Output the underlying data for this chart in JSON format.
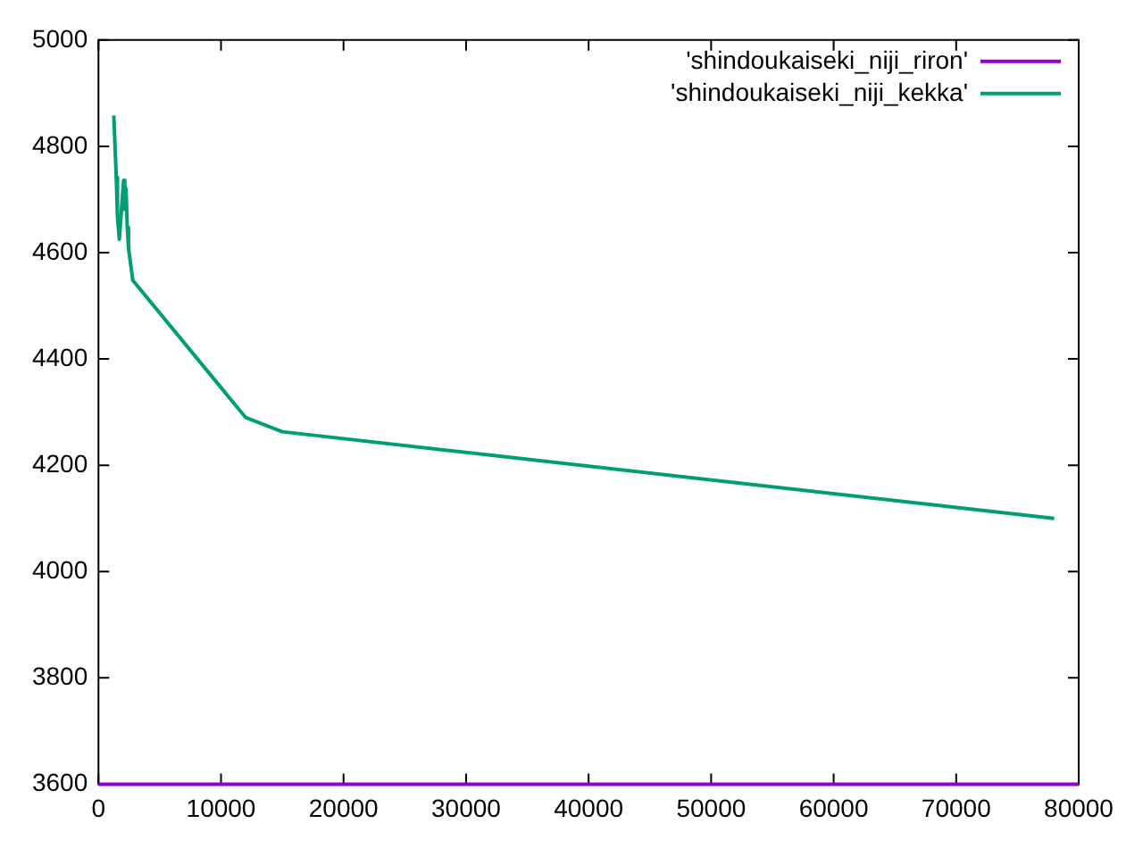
{
  "chart_data": {
    "type": "line",
    "xlim": [
      0,
      80000
    ],
    "ylim": [
      3600,
      5000
    ],
    "xticks": [
      0,
      10000,
      20000,
      30000,
      40000,
      50000,
      60000,
      70000,
      80000
    ],
    "yticks": [
      3600,
      3800,
      4000,
      4200,
      4400,
      4600,
      4800,
      5000
    ],
    "grid": false,
    "legend": "top right",
    "marker": "none",
    "line_style": "solid",
    "series": [
      {
        "name": "'shindoukaiseki_niji_riron'",
        "color": "#9400d3",
        "x": [
          0,
          80000
        ],
        "values": [
          3600,
          3600
        ]
      },
      {
        "name": "'shindoukaiseki_niji_kekka'",
        "color": "#009e73",
        "x": [
          1250,
          1450,
          1550,
          1700,
          2050,
          2150,
          2250,
          2350,
          2450,
          2800,
          12000,
          15000,
          78000
        ],
        "values": [
          4858,
          4742,
          4667,
          4625,
          4736,
          4681,
          4720,
          4647,
          4609,
          4548,
          4290,
          4263,
          4100
        ]
      }
    ]
  }
}
